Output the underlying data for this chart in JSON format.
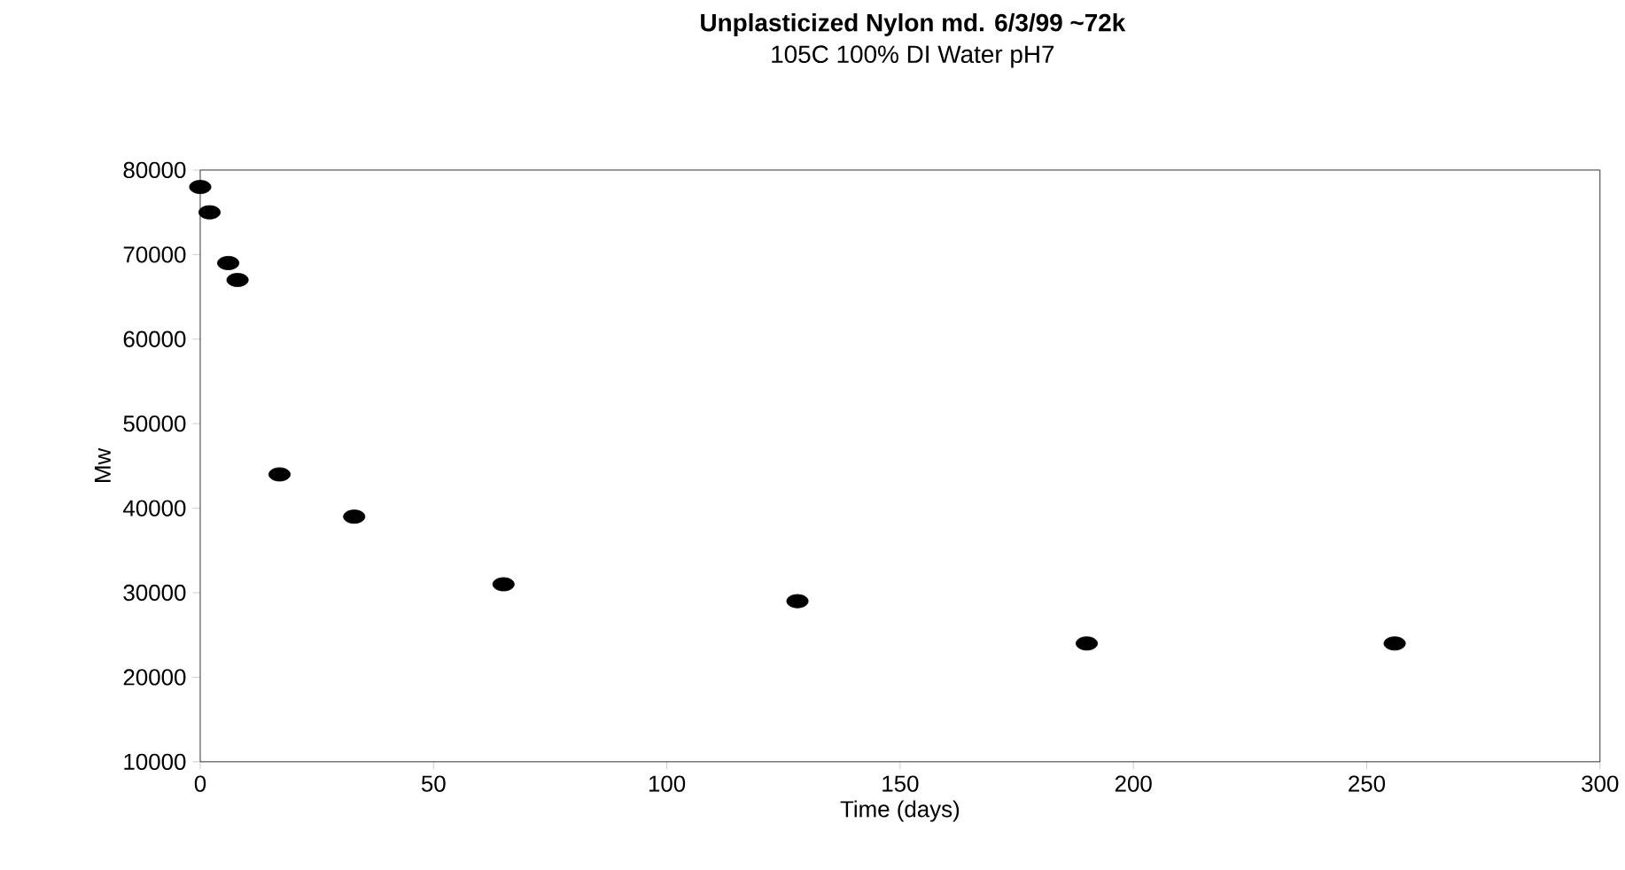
{
  "chart_data": {
    "type": "scatter",
    "title": "Unplasticized Nylon md. 6/3/99 ~72k",
    "subtitle": "105C 100% DI Water pH7",
    "xlabel": "Time (days)",
    "ylabel": "Mw",
    "x": [
      0,
      2,
      6,
      8,
      17,
      33,
      65,
      128,
      190,
      256
    ],
    "series": [
      {
        "color": "#000000",
        "values": [
          78000,
          75000,
          69000,
          67000,
          44000,
          39000,
          31000,
          29000,
          24000,
          24000
        ]
      }
    ],
    "xlim": [
      0,
      300
    ],
    "xticks": [
      0,
      50,
      100,
      150,
      200,
      250,
      300
    ],
    "ylim": [
      10000,
      80000
    ],
    "yticks": [
      10000,
      20000,
      30000,
      40000,
      50000,
      60000,
      70000,
      80000
    ],
    "marker": "circle",
    "grid": false
  }
}
